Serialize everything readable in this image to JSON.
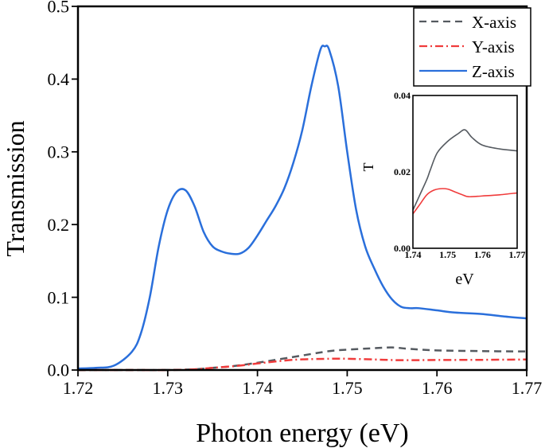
{
  "chart_data": [
    {
      "type": "line",
      "xlabel": "Photon energy (eV)",
      "ylabel": "Transmission",
      "xlim": [
        1.72,
        1.77
      ],
      "ylim": [
        0,
        0.5
      ],
      "xticks": [
        "1.72",
        "1.73",
        "1.74",
        "1.75",
        "1.76",
        "1.77"
      ],
      "yticks": [
        "0.0",
        "0.1",
        "0.2",
        "0.3",
        "0.4",
        "0.5"
      ],
      "grid": false,
      "legend_position": "top-right",
      "series": [
        {
          "name": "X-axis",
          "color": "#555a60",
          "style": "dashed",
          "x": [
            1.72,
            1.725,
            1.73,
            1.733,
            1.735,
            1.737,
            1.74,
            1.745,
            1.748,
            1.75,
            1.753,
            1.755,
            1.757,
            1.76,
            1.765,
            1.77
          ],
          "y": [
            0,
            0,
            0,
            0.001,
            0.003,
            0.005,
            0.01,
            0.02,
            0.026,
            0.028,
            0.03,
            0.031,
            0.029,
            0.027,
            0.026,
            0.0255
          ]
        },
        {
          "name": "Y-axis",
          "color": "#f03c3c",
          "style": "dashdot",
          "x": [
            1.72,
            1.725,
            1.73,
            1.733,
            1.735,
            1.738,
            1.74,
            1.744,
            1.748,
            1.75,
            1.753,
            1.756,
            1.76,
            1.765,
            1.77
          ],
          "y": [
            0,
            0,
            0,
            0.001,
            0.003,
            0.006,
            0.009,
            0.014,
            0.0155,
            0.0155,
            0.0145,
            0.0135,
            0.0138,
            0.014,
            0.0145
          ]
        },
        {
          "name": "Z-axis",
          "color": "#2a6fdb",
          "style": "solid",
          "x": [
            1.72,
            1.722,
            1.724,
            1.726,
            1.727,
            1.728,
            1.729,
            1.73,
            1.731,
            1.732,
            1.733,
            1.734,
            1.735,
            1.736,
            1.737,
            1.738,
            1.739,
            1.74,
            1.741,
            1.742,
            1.743,
            1.744,
            1.745,
            1.746,
            1.747,
            1.7475,
            1.748,
            1.749,
            1.75,
            1.751,
            1.752,
            1.753,
            1.754,
            1.755,
            1.756,
            1.757,
            1.758,
            1.76,
            1.762,
            1.765,
            1.768,
            1.77
          ],
          "y": [
            0.002,
            0.003,
            0.006,
            0.025,
            0.05,
            0.1,
            0.17,
            0.22,
            0.245,
            0.247,
            0.225,
            0.19,
            0.17,
            0.163,
            0.16,
            0.16,
            0.168,
            0.185,
            0.205,
            0.225,
            0.25,
            0.285,
            0.33,
            0.39,
            0.44,
            0.445,
            0.44,
            0.39,
            0.3,
            0.22,
            0.17,
            0.14,
            0.115,
            0.097,
            0.087,
            0.085,
            0.085,
            0.082,
            0.079,
            0.077,
            0.073,
            0.071
          ]
        }
      ]
    },
    {
      "type": "line",
      "xlabel": "eV",
      "ylabel": "T",
      "xlim": [
        1.74,
        1.77
      ],
      "ylim": [
        0,
        0.04
      ],
      "xticks": [
        "1.74",
        "1.75",
        "1.76",
        "1.77"
      ],
      "yticks": [
        "0.00",
        "0.02",
        "0.04"
      ],
      "grid": false,
      "series": [
        {
          "color": "#555a60",
          "style": "dashed-then-solid",
          "x": [
            1.74,
            1.742,
            1.744,
            1.745,
            1.747,
            1.75,
            1.753,
            1.755,
            1.757,
            1.76,
            1.765,
            1.77
          ],
          "y": [
            0.01,
            0.014,
            0.018,
            0.0205,
            0.025,
            0.028,
            0.03,
            0.031,
            0.029,
            0.027,
            0.026,
            0.0255
          ]
        },
        {
          "color": "#f03c3c",
          "style": "solid",
          "x": [
            1.74,
            1.742,
            1.744,
            1.746,
            1.748,
            1.75,
            1.752,
            1.754,
            1.756,
            1.76,
            1.765,
            1.77
          ],
          "y": [
            0.009,
            0.0115,
            0.014,
            0.0152,
            0.0156,
            0.0155,
            0.0148,
            0.0141,
            0.0135,
            0.0137,
            0.014,
            0.0145
          ]
        }
      ]
    }
  ]
}
